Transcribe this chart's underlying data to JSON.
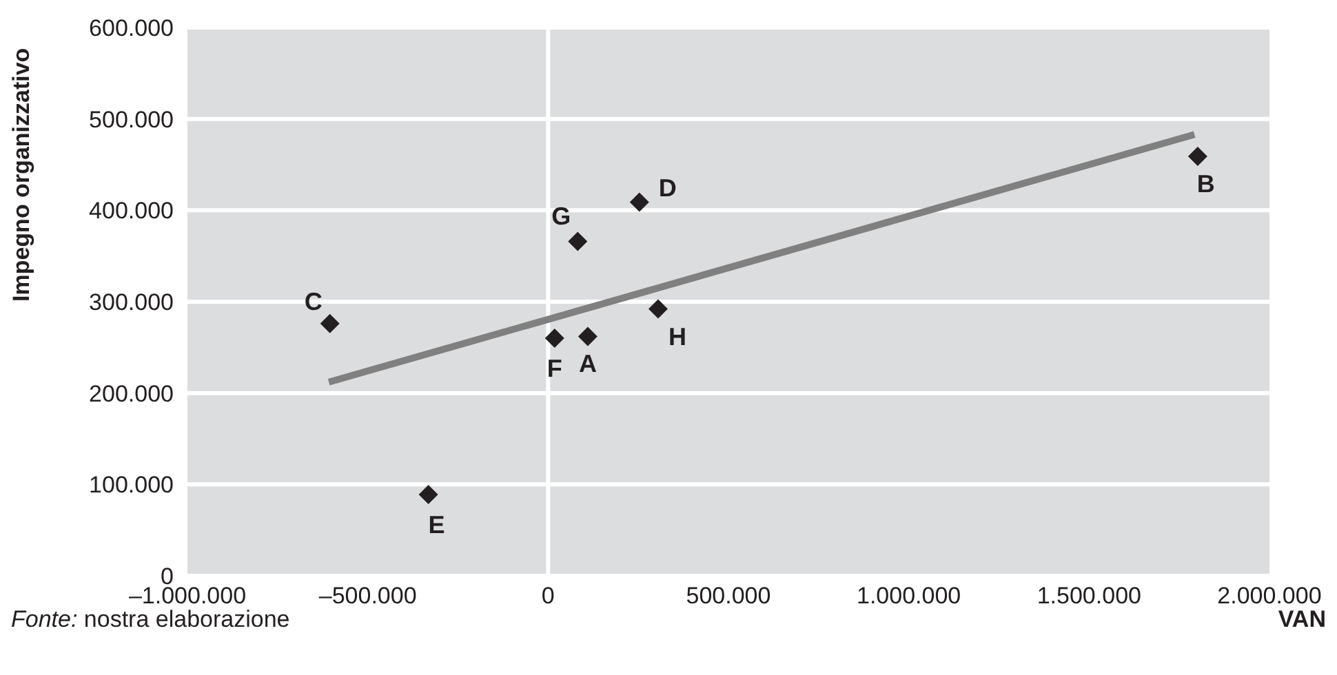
{
  "chart_data": {
    "type": "scatter",
    "xlabel": "VAN",
    "ylabel": "Impegno organizzativo",
    "series": [
      {
        "type": "scatter",
        "color": "#231f20",
        "marker": "diamond",
        "x": [
          110000,
          1801000,
          -605000,
          253000,
          -332000,
          18000,
          82000,
          305000
        ],
        "values": [
          262000,
          459000,
          276000,
          409000,
          89000,
          260000,
          366000,
          292000
        ]
      },
      {
        "type": "line",
        "color": "#808080",
        "marker": "none",
        "x": [
          -608000,
          1792000
        ],
        "values": [
          212000,
          483000
        ]
      }
    ],
    "xlim": [
      -1000000,
      2000000
    ],
    "xticks": [
      {
        "value": -1000000,
        "label": "–1.000.000"
      },
      {
        "value": -500000,
        "label": "–500.000"
      },
      0,
      {
        "value": 500000,
        "label": "500.000"
      },
      {
        "value": 1000000,
        "label": "1.000.000"
      },
      {
        "value": 1500000,
        "label": "1.500.000"
      },
      {
        "value": 2000000,
        "label": "2.000.000"
      }
    ],
    "ylim": [
      0,
      600000
    ],
    "yticks": [
      0,
      {
        "value": 100000,
        "label": "100.000"
      },
      {
        "value": 200000,
        "label": "200.000"
      },
      {
        "value": 300000,
        "label": "300.000"
      },
      {
        "value": 400000,
        "label": "400.000"
      },
      {
        "value": 500000,
        "label": "500.000"
      },
      {
        "value": 600000,
        "label": "600.000"
      }
    ],
    "grid": "y",
    "ref_lines": [
      {
        "axis": "x",
        "value": 0,
        "color": "#ffffff"
      }
    ],
    "annotations": [
      {
        "text": "A",
        "x": 110000,
        "y": 262000
      },
      {
        "text": "B",
        "x": 1801000,
        "y": 459000
      },
      {
        "text": "C",
        "x": -605000,
        "y": 276000
      },
      {
        "text": "D",
        "x": 253000,
        "y": 409000
      },
      {
        "text": "E",
        "x": -332000,
        "y": 89000
      },
      {
        "text": "F",
        "x": 18000,
        "y": 260000
      },
      {
        "text": "G",
        "x": 82000,
        "y": 366000
      },
      {
        "text": "H",
        "x": 305000,
        "y": 292000
      },
      "Fonte: nostra elaborazione"
    ]
  }
}
